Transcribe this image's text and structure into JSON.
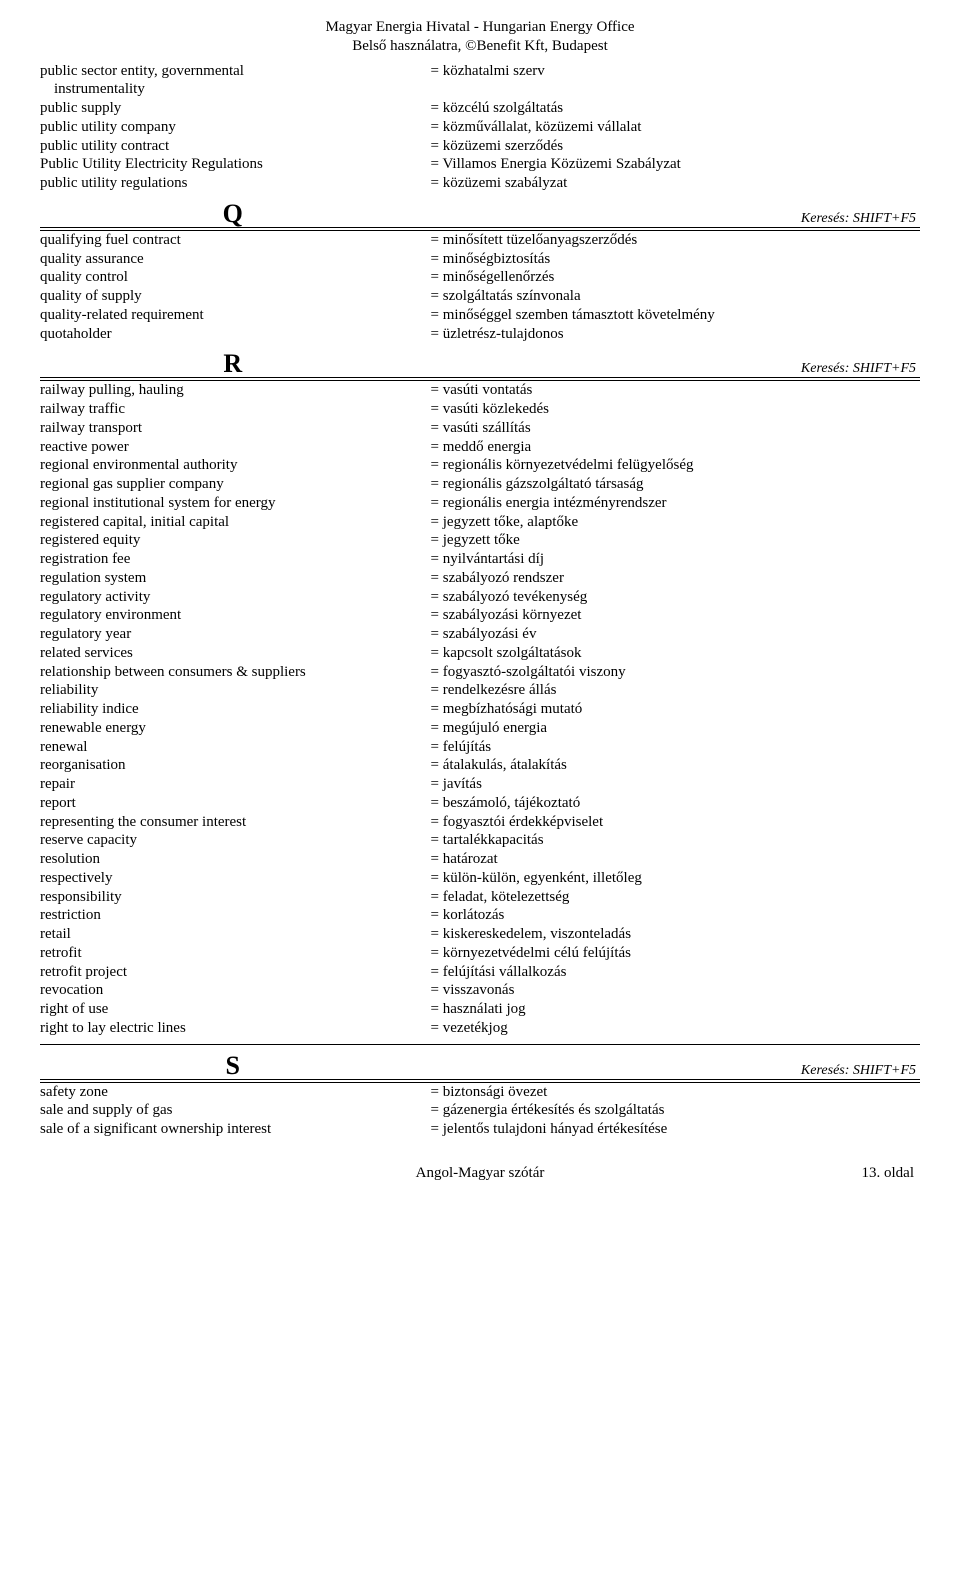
{
  "header": {
    "line1": "Magyar Energia Hivatal - Hungarian Energy Office",
    "line2": "Belső használatra, ©Benefit Kft, Budapest"
  },
  "separator": "=",
  "search_hint": "Keresés: SHIFT+F5",
  "sections": {
    "intro": [
      {
        "en": "public sector entity, governmental",
        "hu": "közhatalmi szerv",
        "cont": "instrumentality"
      },
      {
        "en": "public supply",
        "hu": "közcélú szolgáltatás"
      },
      {
        "en": "public utility company",
        "hu": "közművállalat, közüzemi vállalat"
      },
      {
        "en": "public utility contract",
        "hu": "közüzemi szerződés"
      },
      {
        "en": "Public Utility Electricity Regulations",
        "hu": "Villamos Energia Közüzemi Szabályzat"
      },
      {
        "en": "public utility regulations",
        "hu": "közüzemi szabályzat"
      }
    ],
    "Q": [
      {
        "en": "qualifying fuel contract",
        "hu": "minősített tüzelőanyagszerződés"
      },
      {
        "en": "quality assurance",
        "hu": "minőségbiztosítás"
      },
      {
        "en": "quality control",
        "hu": "minőségellenőrzés"
      },
      {
        "en": "quality of supply",
        "hu": "szolgáltatás színvonala"
      },
      {
        "en": "quality-related requirement",
        "hu": "minőséggel szemben támasztott követelmény"
      },
      {
        "en": "quotaholder",
        "hu": "üzletrész-tulajdonos"
      }
    ],
    "R": [
      {
        "en": "railway pulling, hauling",
        "hu": "vasúti vontatás"
      },
      {
        "en": "railway traffic",
        "hu": "vasúti közlekedés"
      },
      {
        "en": "railway transport",
        "hu": "vasúti szállítás"
      },
      {
        "en": "reactive power",
        "hu": "meddő energia"
      },
      {
        "en": "regional environmental authority",
        "hu": "regionális környezetvédelmi felügyelőség"
      },
      {
        "en": "regional gas supplier company",
        "hu": "regionális gázszolgáltató társaság"
      },
      {
        "en": "regional institutional system for energy",
        "hu": "regionális energia intézményrendszer"
      },
      {
        "en": "registered capital, initial capital",
        "hu": "jegyzett tőke, alaptőke"
      },
      {
        "en": "registered equity",
        "hu": "jegyzett tőke"
      },
      {
        "en": "registration fee",
        "hu": "nyilvántartási díj"
      },
      {
        "en": "regulation system",
        "hu": "szabályozó rendszer"
      },
      {
        "en": "regulatory activity",
        "hu": "szabályozó tevékenység"
      },
      {
        "en": "regulatory environment",
        "hu": "szabályozási környezet"
      },
      {
        "en": "regulatory year",
        "hu": "szabályozási év"
      },
      {
        "en": "related services",
        "hu": "kapcsolt szolgáltatások"
      },
      {
        "en": "relationship between consumers & suppliers",
        "hu": "fogyasztó-szolgáltatói viszony"
      },
      {
        "en": "reliability",
        "hu": "rendelkezésre állás"
      },
      {
        "en": "reliability indice",
        "hu": "megbízhatósági mutató"
      },
      {
        "en": "renewable energy",
        "hu": "megújuló energia"
      },
      {
        "en": "renewal",
        "hu": "felújítás"
      },
      {
        "en": "reorganisation",
        "hu": "átalakulás, átalakítás"
      },
      {
        "en": "repair",
        "hu": "javítás"
      },
      {
        "en": "report",
        "hu": "beszámoló, tájékoztató"
      },
      {
        "en": "representing the consumer interest",
        "hu": "fogyasztói érdekképviselet"
      },
      {
        "en": "reserve capacity",
        "hu": "tartalékkapacitás"
      },
      {
        "en": "resolution",
        "hu": "határozat"
      },
      {
        "en": "respectively",
        "hu": "külön-külön, egyenként, illetőleg"
      },
      {
        "en": "responsibility",
        "hu": "feladat, kötelezettség"
      },
      {
        "en": "restriction",
        "hu": "korlátozás"
      },
      {
        "en": "retail",
        "hu": "kiskereskedelem, viszonteladás"
      },
      {
        "en": "retrofit",
        "hu": "környezetvédelmi célú felújítás"
      },
      {
        "en": "retrofit project",
        "hu": "felújítási vállalkozás"
      },
      {
        "en": "revocation",
        "hu": "visszavonás"
      },
      {
        "en": "right of use",
        "hu": "használati jog"
      },
      {
        "en": "right to lay electric lines",
        "hu": "vezetékjog"
      }
    ],
    "S": [
      {
        "en": "safety zone",
        "hu": "biztonsági övezet"
      },
      {
        "en": "sale and supply of gas",
        "hu": "gázenergia értékesítés és szolgáltatás"
      },
      {
        "en": "sale of a significant ownership interest",
        "hu": "jelentős tulajdoni hányad értékesítése"
      }
    ]
  },
  "section_letters": {
    "Q": "Q",
    "R": "R",
    "S": "S"
  },
  "footer": {
    "center": "Angol-Magyar szótár",
    "right": "13. oldal"
  }
}
